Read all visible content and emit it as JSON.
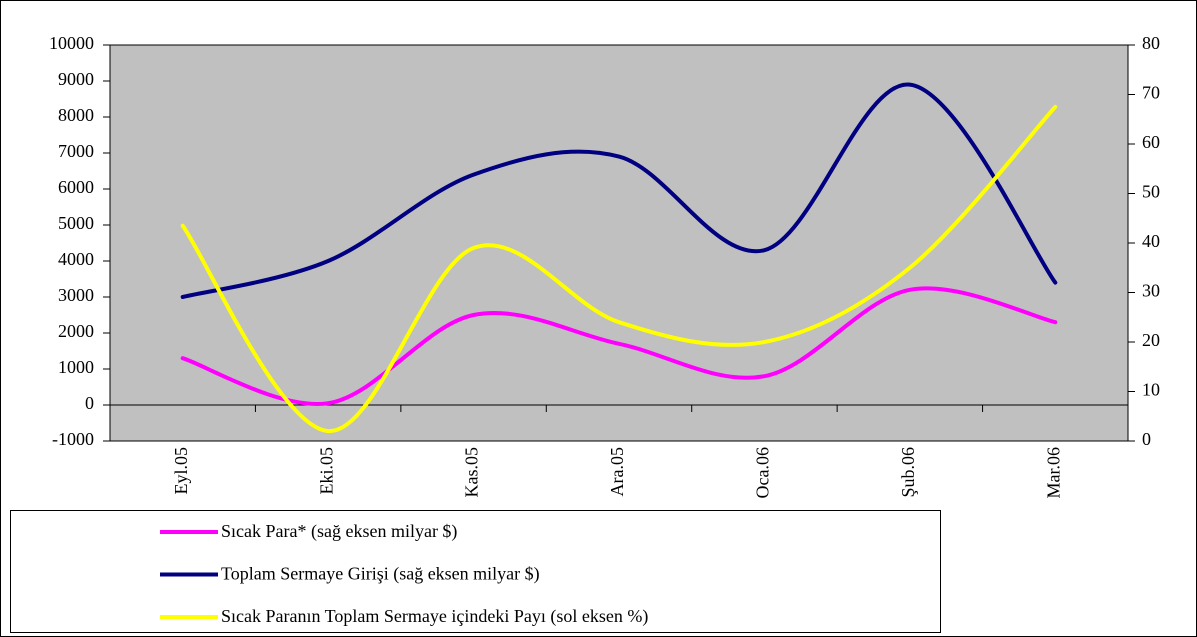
{
  "chart_data": {
    "type": "line",
    "categories": [
      "Eyl.05",
      "Eki.05",
      "Kas.05",
      "Ara.05",
      "Oca.06",
      "Şub.06",
      "Mar.06"
    ],
    "series": [
      {
        "name": "Sıcak Para* (sağ eksen milyar $)",
        "color": "#ff00ff",
        "values": [
          1300,
          50,
          2500,
          1700,
          800,
          3200,
          2300
        ]
      },
      {
        "name": "Toplam Sermaye Girişi (sağ eksen milyar $)",
        "color": "#000080",
        "values": [
          3000,
          4000,
          6400,
          6900,
          4300,
          8900,
          3400
        ]
      },
      {
        "name": "Sıcak Paranın Toplam Sermaye içindeki Payı (sol eksen %)",
        "color": "#ffff00",
        "axis": "y2",
        "values": [
          43.5,
          2,
          39,
          24,
          20,
          35,
          67.5
        ]
      }
    ],
    "ylim": [
      -1000,
      10000
    ],
    "yticks": [
      -1000,
      0,
      1000,
      2000,
      3000,
      4000,
      5000,
      6000,
      7000,
      8000,
      9000,
      10000
    ],
    "y2lim": [
      0,
      80
    ],
    "y2ticks": [
      0,
      10,
      20,
      30,
      40,
      50,
      60,
      70,
      80
    ],
    "plot_background": "#c0c0c0",
    "smooth": true
  }
}
